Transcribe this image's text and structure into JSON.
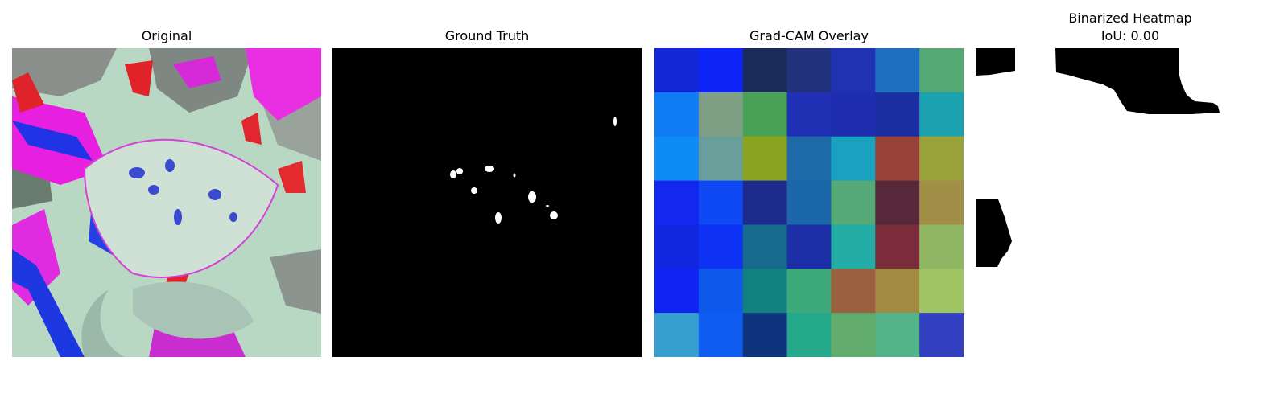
{
  "panels": {
    "original": {
      "title": "Original"
    },
    "ground_truth": {
      "title": "Ground Truth"
    },
    "gradcam": {
      "title": "Grad-CAM Overlay",
      "grid": [
        [
          "#1228d6",
          "#0f24f6",
          "#192a5b",
          "#22317c",
          "#1f33b2",
          "#1f6fc0",
          "#53a874"
        ],
        [
          "#0f7cf3",
          "#7f9f85",
          "#4aa259",
          "#2030b5",
          "#1e2db0",
          "#1b2ea2",
          "#1aa2b0"
        ],
        [
          "#0f8bf4",
          "#6a9e9a",
          "#8aa420",
          "#1e6aa9",
          "#1aa1bf",
          "#964237",
          "#98a13a"
        ],
        [
          "#1228ee",
          "#0f49f5",
          "#1c2b8c",
          "#1b67aa",
          "#55a976",
          "#57283a",
          "#a18f47"
        ],
        [
          "#1228e0",
          "#0f33f4",
          "#166a8c",
          "#1d2fa7",
          "#23aba5",
          "#7a2c3a",
          "#8fb663"
        ],
        [
          "#1024f3",
          "#0f58ec",
          "#10817e",
          "#3ea97b",
          "#9a6040",
          "#a18a42",
          "#9fc463"
        ],
        [
          "#369fd0",
          "#0f5cf0",
          "#0f347e",
          "#24a98a",
          "#62ac6e",
          "#53b489",
          "#3440c2"
        ]
      ]
    },
    "binarized": {
      "title_line1": "Binarized Heatmap",
      "title_line2": "IoU: 0.00"
    }
  },
  "colors": {
    "mask_fg": "#ffffff",
    "mask_bg": "#000000",
    "heat_fg": "#000000"
  }
}
